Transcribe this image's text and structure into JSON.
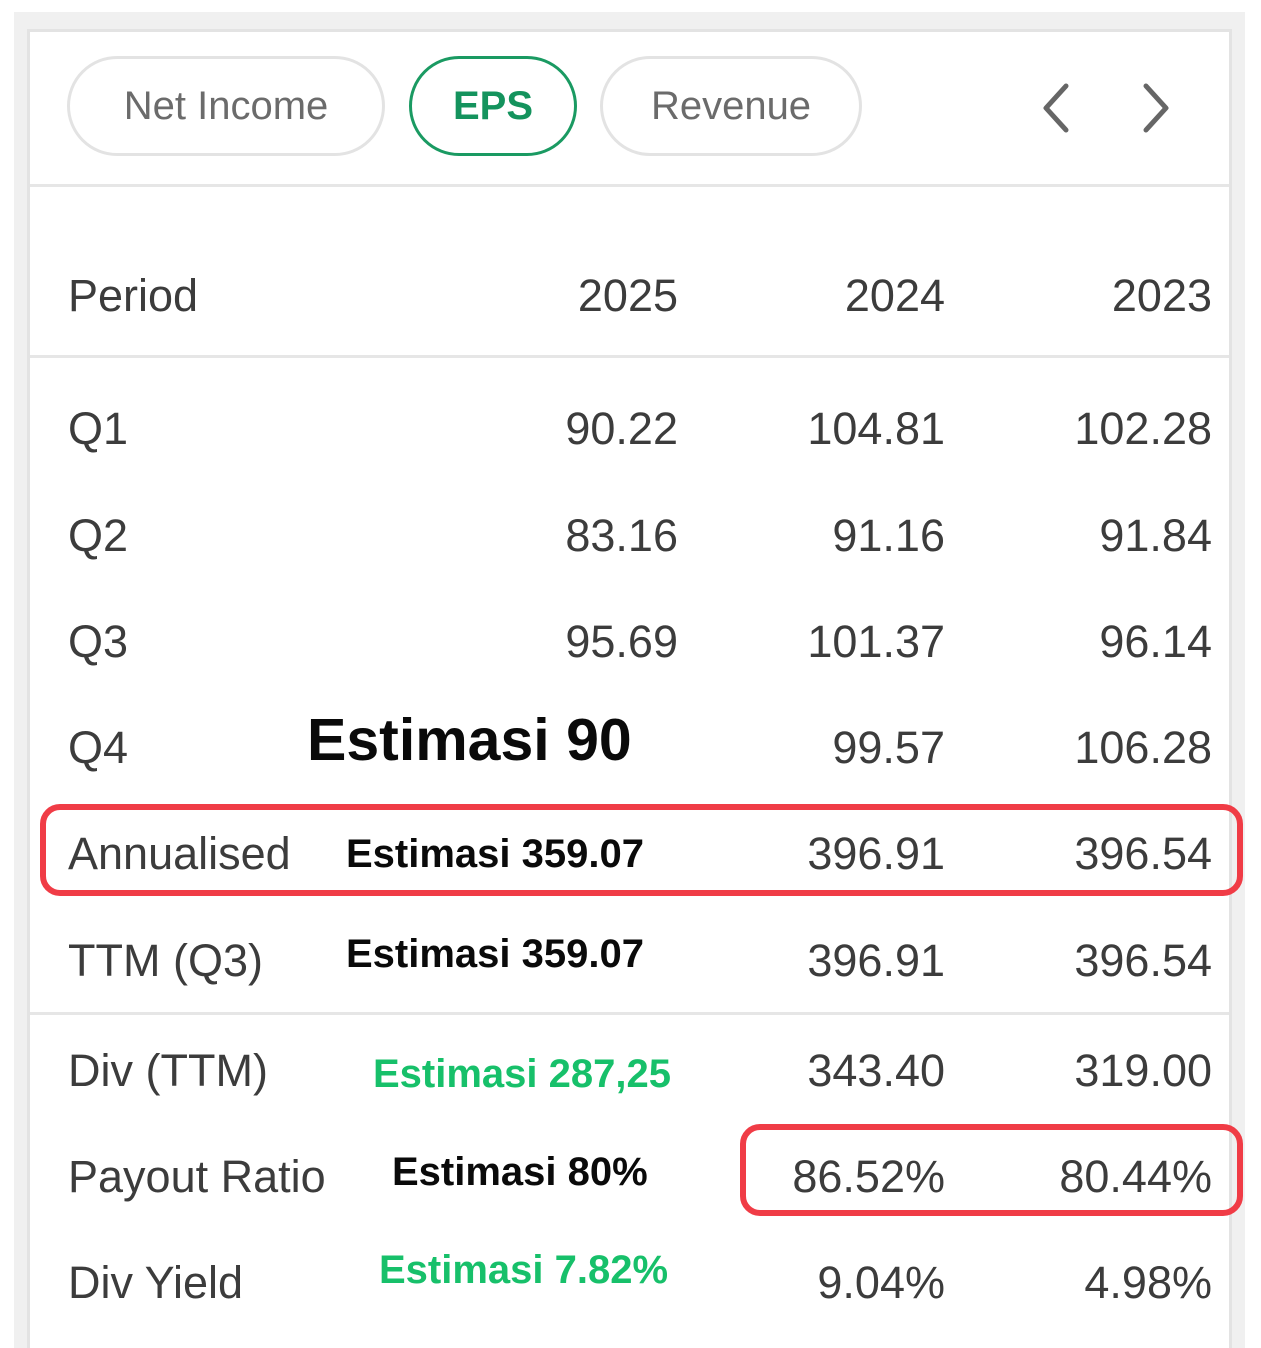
{
  "tabs": [
    {
      "label": "Net Income",
      "active": false
    },
    {
      "label": "EPS",
      "active": true
    },
    {
      "label": "Revenue",
      "active": false
    }
  ],
  "nav": {
    "prev_icon": "chevron-left-icon",
    "next_icon": "chevron-right-icon"
  },
  "table": {
    "header": {
      "label": "Period",
      "years": [
        "2025",
        "2024",
        "2023"
      ]
    },
    "rows": [
      {
        "label": "Q1",
        "values": [
          "90.22",
          "104.81",
          "102.28"
        ]
      },
      {
        "label": "Q2",
        "values": [
          "83.16",
          "91.16",
          "91.84"
        ]
      },
      {
        "label": "Q3",
        "values": [
          "95.69",
          "101.37",
          "96.14"
        ]
      },
      {
        "label": "Q4",
        "values": [
          "",
          "99.57",
          "106.28"
        ]
      },
      {
        "label": "Annualised",
        "values": [
          "",
          "396.91",
          "396.54"
        ]
      },
      {
        "label": "TTM (Q3)",
        "values": [
          "",
          "396.91",
          "396.54"
        ]
      },
      {
        "label": "Div (TTM)",
        "values": [
          "",
          "343.40",
          "319.00"
        ]
      },
      {
        "label": "Payout Ratio",
        "values": [
          "",
          "86.52%",
          "80.44%"
        ]
      },
      {
        "label": "Div Yield",
        "values": [
          "",
          "9.04%",
          "4.98%"
        ]
      }
    ]
  },
  "annotations": {
    "q4": "Estimasi 90",
    "annualised": "Estimasi 359.07",
    "ttm": "Estimasi 359.07",
    "div_ttm": "Estimasi 287,25",
    "payout_ratio": "Estimasi 80%",
    "div_yield": "Estimasi 7.82%"
  },
  "colors": {
    "active_tab": "#1a9a62",
    "highlight_box": "#f03c46",
    "estimate_green": "#17c06a",
    "estimate_black": "#0a0a0a"
  }
}
